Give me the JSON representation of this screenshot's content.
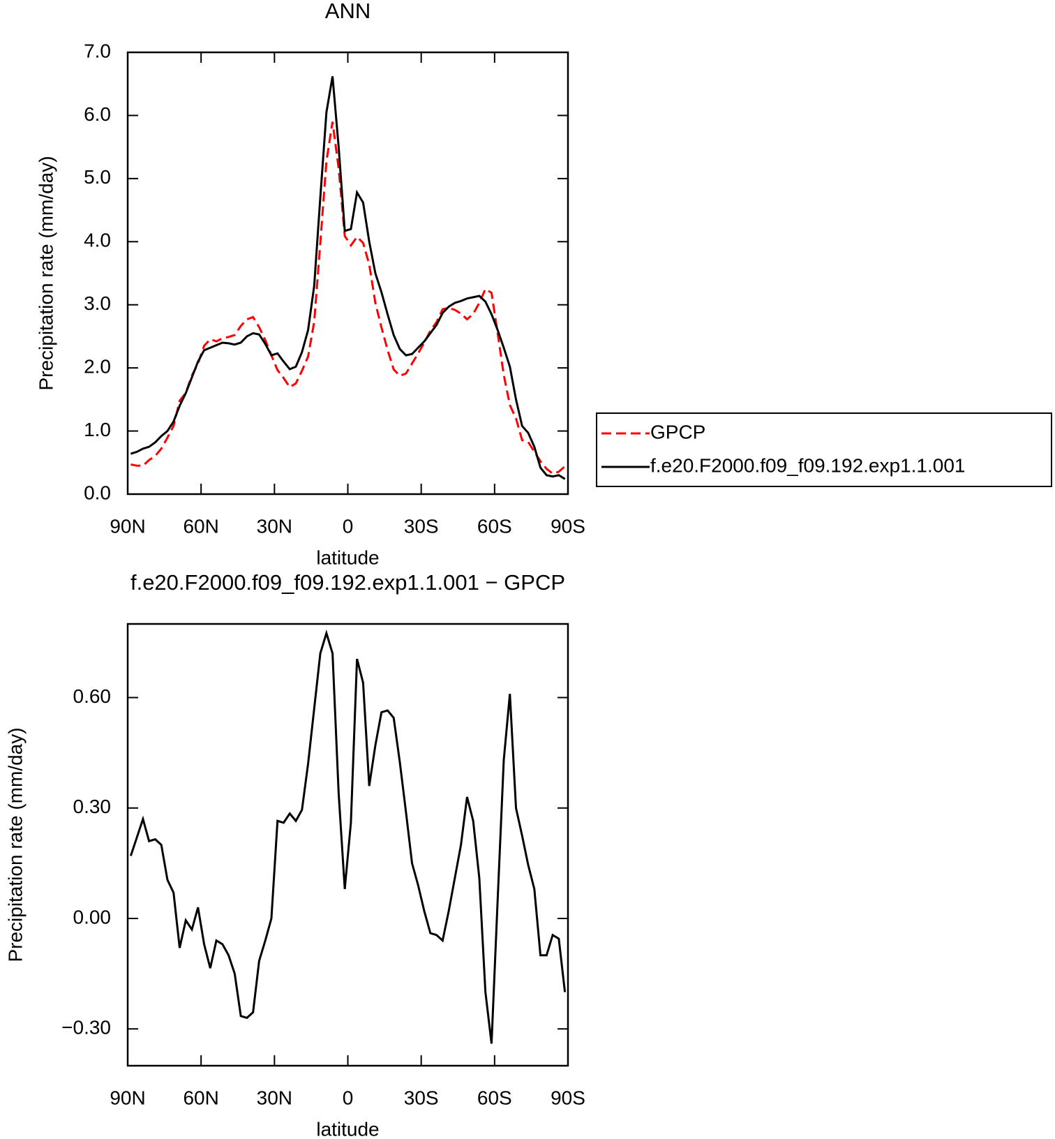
{
  "chart_data": [
    {
      "type": "line",
      "title": "ANN",
      "xlabel": "latitude",
      "ylabel": "Precipitation rate (mm/day)",
      "x": [
        88.75,
        86.25,
        83.75,
        81.25,
        78.75,
        76.25,
        73.75,
        71.25,
        68.75,
        66.25,
        63.75,
        61.25,
        58.75,
        56.25,
        53.75,
        51.25,
        48.75,
        46.25,
        43.75,
        41.25,
        38.75,
        36.25,
        33.75,
        31.25,
        28.75,
        26.25,
        23.75,
        21.25,
        18.75,
        16.25,
        13.75,
        11.25,
        8.75,
        6.25,
        3.75,
        1.25,
        -1.25,
        -3.75,
        -6.25,
        -8.75,
        -11.25,
        -13.75,
        -16.25,
        -18.75,
        -21.25,
        -23.75,
        -26.25,
        -28.75,
        -31.25,
        -33.75,
        -36.25,
        -38.75,
        -41.25,
        -43.75,
        -46.25,
        -48.75,
        -51.25,
        -53.75,
        -56.25,
        -58.75,
        -61.25,
        -63.75,
        -66.25,
        -68.75,
        -71.25,
        -73.75,
        -76.25,
        -78.75,
        -81.25,
        -83.75,
        -86.25,
        -88.75
      ],
      "series": [
        {
          "name": "GPCP",
          "color": "#ff0000",
          "line_style": "dashed",
          "values": [
            0.47,
            0.45,
            0.45,
            0.54,
            0.605,
            0.72,
            0.895,
            1.08,
            1.48,
            1.605,
            1.88,
            2.07,
            2.35,
            2.455,
            2.42,
            2.47,
            2.49,
            2.52,
            2.665,
            2.77,
            2.805,
            2.645,
            2.44,
            2.2,
            1.965,
            1.84,
            1.695,
            1.755,
            1.955,
            2.18,
            2.73,
            3.98,
            5.275,
            5.9,
            5.16,
            4.09,
            3.94,
            4.075,
            3.98,
            3.64,
            3.03,
            2.64,
            2.285,
            1.975,
            1.875,
            1.91,
            2.07,
            2.23,
            2.4,
            2.59,
            2.725,
            2.93,
            2.95,
            2.92,
            2.86,
            2.77,
            2.855,
            3.03,
            3.25,
            3.19,
            2.55,
            1.89,
            1.41,
            1.2,
            0.855,
            0.825,
            0.67,
            0.52,
            0.4,
            0.325,
            0.355,
            0.44
          ]
        },
        {
          "name": "f.e20.F2000.f09_f09.192.exp1.1.001",
          "color": "#000000",
          "line_style": "solid",
          "values": [
            0.64,
            0.67,
            0.72,
            0.75,
            0.82,
            0.92,
            1.0,
            1.15,
            1.4,
            1.6,
            1.85,
            2.1,
            2.28,
            2.32,
            2.36,
            2.4,
            2.39,
            2.37,
            2.4,
            2.5,
            2.55,
            2.53,
            2.38,
            2.2,
            2.23,
            2.1,
            1.98,
            2.02,
            2.25,
            2.6,
            3.3,
            4.7,
            6.05,
            6.62,
            5.5,
            4.17,
            4.2,
            4.78,
            4.62,
            4.0,
            3.5,
            3.2,
            2.85,
            2.52,
            2.3,
            2.2,
            2.22,
            2.32,
            2.42,
            2.55,
            2.68,
            2.87,
            2.97,
            3.03,
            3.06,
            3.1,
            3.12,
            3.14,
            3.05,
            2.85,
            2.6,
            2.32,
            2.02,
            1.5,
            1.08,
            0.97,
            0.75,
            0.42,
            0.3,
            0.28,
            0.3,
            0.24
          ]
        }
      ],
      "xlim": [
        90,
        -90
      ],
      "xticks": [
        {
          "value": 90,
          "label": "90N"
        },
        {
          "value": 60,
          "label": "60N"
        },
        {
          "value": 30,
          "label": "30N"
        },
        0,
        {
          "value": -30,
          "label": "30S"
        },
        {
          "value": -60,
          "label": "60S"
        },
        {
          "value": -90,
          "label": "90S"
        }
      ],
      "ylim": [
        0,
        7
      ],
      "yticks": [
        {
          "value": 0,
          "label": "0.0"
        },
        {
          "value": 1,
          "label": "1.0"
        },
        {
          "value": 2,
          "label": "2.0"
        },
        {
          "value": 3,
          "label": "3.0"
        },
        {
          "value": 4,
          "label": "4.0"
        },
        {
          "value": 5,
          "label": "5.0"
        },
        {
          "value": 6,
          "label": "6.0"
        },
        {
          "value": 7,
          "label": "7.0"
        }
      ],
      "legend": "right"
    },
    {
      "type": "line",
      "title": "f.e20.F2000.f09_f09.192.exp1.1.001 − GPCP",
      "xlabel": "latitude",
      "ylabel": "Precipitation rate (mm/day)",
      "x": [
        88.75,
        86.25,
        83.75,
        81.25,
        78.75,
        76.25,
        73.75,
        71.25,
        68.75,
        66.25,
        63.75,
        61.25,
        58.75,
        56.25,
        53.75,
        51.25,
        48.75,
        46.25,
        43.75,
        41.25,
        38.75,
        36.25,
        33.75,
        31.25,
        28.75,
        26.25,
        23.75,
        21.25,
        18.75,
        16.25,
        13.75,
        11.25,
        8.75,
        6.25,
        3.75,
        1.25,
        -1.25,
        -3.75,
        -6.25,
        -8.75,
        -11.25,
        -13.75,
        -16.25,
        -18.75,
        -21.25,
        -23.75,
        -26.25,
        -28.75,
        -31.25,
        -33.75,
        -36.25,
        -38.75,
        -41.25,
        -43.75,
        -46.25,
        -48.75,
        -51.25,
        -53.75,
        -56.25,
        -58.75,
        -61.25,
        -63.75,
        -66.25,
        -68.75,
        -71.25,
        -73.75,
        -76.25,
        -78.75,
        -81.25,
        -83.75,
        -86.25,
        -88.75
      ],
      "values": [
        0.17,
        0.22,
        0.27,
        0.21,
        0.215,
        0.2,
        0.105,
        0.07,
        -0.08,
        -0.005,
        -0.03,
        0.03,
        -0.07,
        -0.135,
        -0.06,
        -0.07,
        -0.1,
        -0.15,
        -0.265,
        -0.27,
        -0.255,
        -0.115,
        -0.06,
        0.0,
        0.265,
        0.26,
        0.285,
        0.265,
        0.295,
        0.42,
        0.57,
        0.72,
        0.775,
        0.72,
        0.34,
        0.08,
        0.26,
        0.705,
        0.64,
        0.36,
        0.47,
        0.56,
        0.565,
        0.545,
        0.425,
        0.29,
        0.15,
        0.09,
        0.02,
        -0.04,
        -0.045,
        -0.06,
        0.02,
        0.11,
        0.2,
        0.33,
        0.265,
        0.11,
        -0.2,
        -0.34,
        0.05,
        0.43,
        0.61,
        0.3,
        0.225,
        0.145,
        0.08,
        -0.1,
        -0.1,
        -0.045,
        -0.055,
        -0.2
      ],
      "color": "#000000",
      "xlim": [
        90,
        -90
      ],
      "xticks": [
        {
          "value": 90,
          "label": "90N"
        },
        {
          "value": 60,
          "label": "60N"
        },
        {
          "value": 30,
          "label": "30N"
        },
        0,
        {
          "value": -30,
          "label": "30S"
        },
        {
          "value": -60,
          "label": "60S"
        },
        {
          "value": -90,
          "label": "90S"
        }
      ],
      "ylim": [
        -0.4,
        0.8
      ],
      "yticks": [
        {
          "value": -0.3,
          "label": "−0.30"
        },
        {
          "value": 0,
          "label": "0.00"
        },
        {
          "value": 0.3,
          "label": "0.30"
        },
        {
          "value": 0.6,
          "label": "0.60"
        }
      ]
    }
  ]
}
